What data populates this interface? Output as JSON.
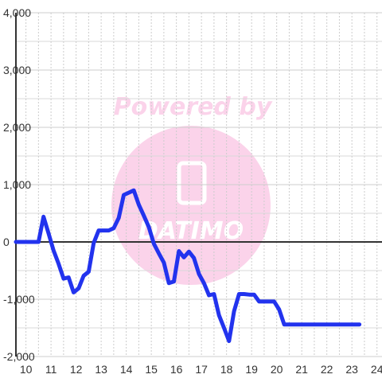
{
  "colors": {
    "background": "#ffffff",
    "grid_major": "#cccccc",
    "grid_minor": "#d9d9d9",
    "axis": "#333333",
    "zero_line": "#333333",
    "series": "#2233ee",
    "watermark": "#fbd3ea",
    "tick_text": "#333333"
  },
  "watermark": {
    "text": "Powered by",
    "logo_text": "DATIMO"
  },
  "chart_data": {
    "type": "line",
    "title": "",
    "xlabel": "",
    "ylabel": "",
    "xlim": [
      9.6,
      24.2
    ],
    "ylim": [
      -2000,
      4000
    ],
    "x_ticks": [
      10,
      11,
      12,
      13,
      14,
      15,
      16,
      17,
      18,
      19,
      20,
      21,
      22,
      23,
      24
    ],
    "x_tick_labels": [
      "10",
      "11",
      "12",
      "13",
      "14",
      "15",
      "16",
      "17",
      "18",
      "19",
      "20",
      "21",
      "22",
      "23",
      "24"
    ],
    "y_ticks": [
      -2000,
      -1000,
      0,
      1000,
      2000,
      3000,
      4000
    ],
    "y_tick_labels": [
      "-2,000",
      "-1,000",
      "0",
      "1,000",
      "2,000",
      "3,000",
      "4,000"
    ],
    "grid": true,
    "legend": "none",
    "series": [
      {
        "x": [
          9.6,
          10.5,
          10.7,
          10.9,
          11.1,
          11.3,
          11.5,
          11.7,
          11.9,
          12.1,
          12.3,
          12.5,
          12.7,
          12.9,
          13.1,
          13.3,
          13.5,
          13.7,
          13.9,
          14.1,
          14.3,
          14.5,
          14.7,
          14.9,
          15.1,
          15.3,
          15.5,
          15.7,
          15.9,
          16.1,
          16.3,
          16.5,
          16.7,
          16.9,
          17.1,
          17.3,
          17.5,
          17.7,
          17.9,
          18.1,
          18.3,
          18.5,
          18.7,
          18.9,
          19.1,
          19.3,
          19.5,
          19.7,
          19.9,
          20.1,
          20.3,
          20.5,
          20.7,
          20.9,
          21.1,
          21.3,
          21.5,
          21.7,
          21.9,
          22.1,
          22.3,
          22.5,
          22.7,
          22.9,
          23.1,
          23.3
        ],
        "values": [
          0,
          0,
          440,
          150,
          -150,
          -380,
          -640,
          -620,
          -880,
          -810,
          -590,
          -520,
          -20,
          200,
          200,
          200,
          240,
          420,
          820,
          860,
          900,
          650,
          460,
          260,
          -30,
          -200,
          -360,
          -720,
          -690,
          -160,
          -270,
          -170,
          -280,
          -560,
          -720,
          -930,
          -910,
          -1280,
          -1500,
          -1730,
          -1210,
          -910,
          -910,
          -920,
          -920,
          -1040,
          -1040,
          -1040,
          -1040,
          -1180,
          -1440,
          -1440,
          -1440,
          -1440,
          -1440,
          -1440,
          -1440,
          -1440,
          -1440,
          -1440,
          -1440,
          -1440,
          -1440,
          -1440,
          -1440,
          -1440
        ]
      }
    ]
  }
}
